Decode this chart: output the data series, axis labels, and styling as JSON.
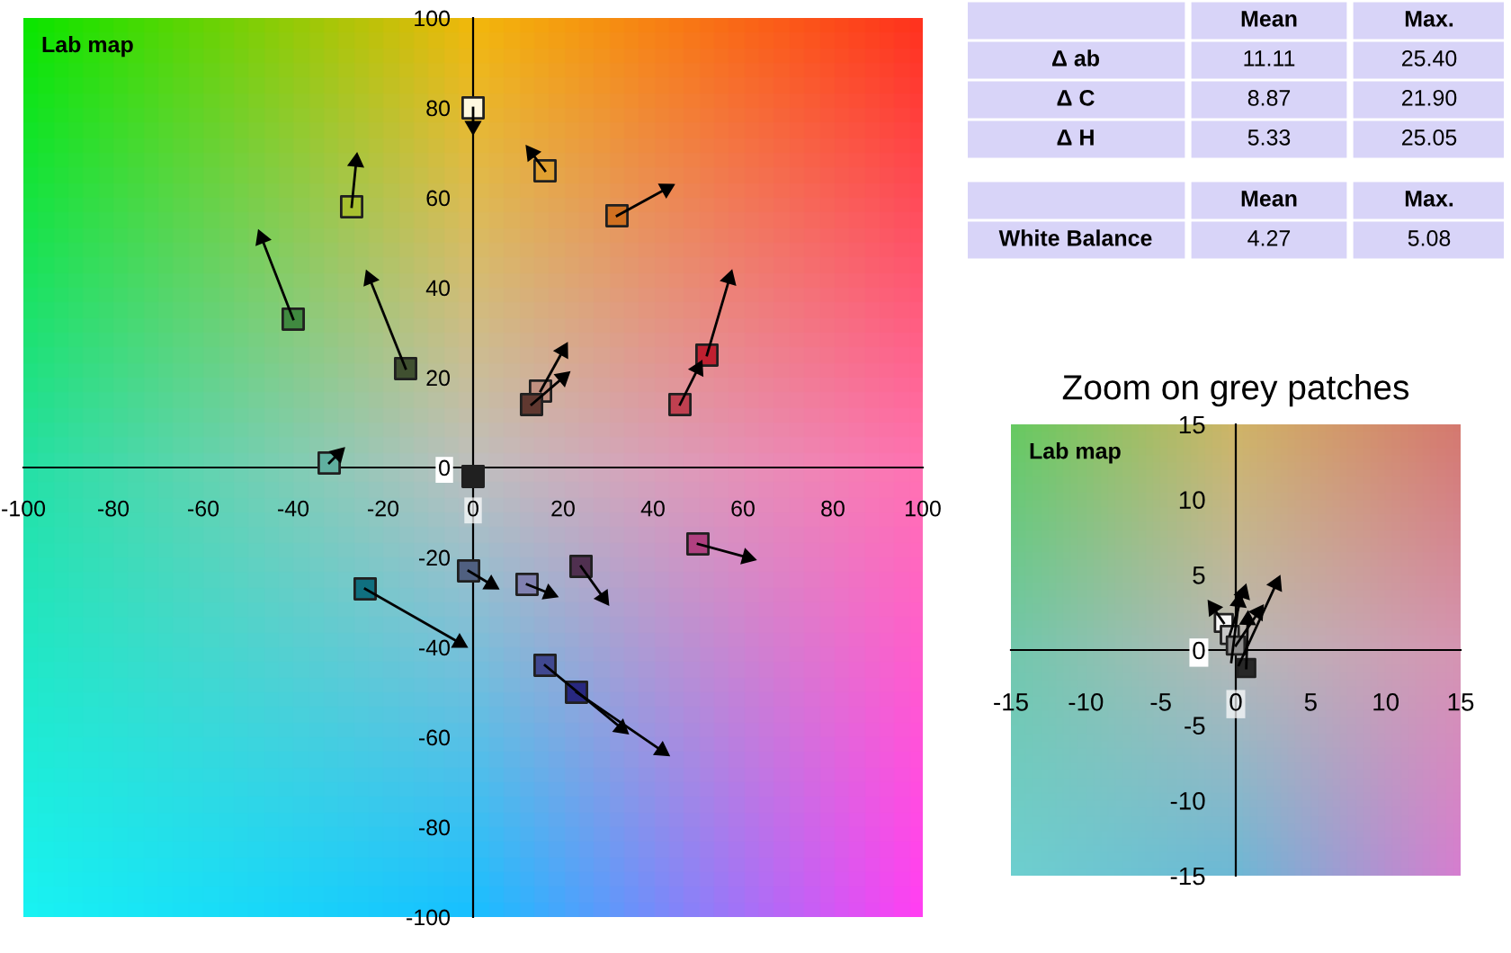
{
  "chart_data": [
    {
      "type": "scatter",
      "title": "Lab map",
      "xlim": [
        -100,
        100
      ],
      "ylim": [
        -100,
        100
      ],
      "xticks": [
        -100,
        -80,
        -60,
        -40,
        -20,
        0,
        20,
        40,
        60,
        80,
        100
      ],
      "yticks": [
        -100,
        -80,
        -60,
        -40,
        -20,
        0,
        20,
        40,
        60,
        80,
        100
      ],
      "grid": false,
      "marker": "square",
      "line_style": "solid",
      "series": [
        {
          "type": "scatter",
          "x": [
            0,
            16,
            -27,
            32,
            -40,
            -15,
            52,
            46,
            15,
            13,
            -32,
            -1,
            12,
            24,
            50,
            -24,
            16,
            23,
            0
          ],
          "values": [
            80,
            66,
            58,
            56,
            33,
            22,
            25,
            14,
            17,
            14,
            1,
            -23,
            -26,
            -22,
            -17,
            -27,
            -44,
            -50,
            -2
          ],
          "colors": [
            "#fff8e0",
            "#e0a030",
            "#a8c030",
            "#d07020",
            "#408a40",
            "#405030",
            "#c02030",
            "#c04050",
            "#c09080",
            "#603830",
            "#60b0a0",
            "#506080",
            "#8080b0",
            "#503050",
            "#b04080",
            "#107080",
            "#404890",
            "#282880",
            "#202020"
          ]
        },
        {
          "type": "line",
          "marker": "triangle",
          "color": "#000000",
          "x": [
            0,
            0
          ],
          "values": [
            80,
            76
          ]
        },
        {
          "type": "line",
          "marker": "triangle",
          "color": "#000000",
          "x": [
            16,
            13
          ],
          "values": [
            66,
            70
          ]
        },
        {
          "type": "line",
          "marker": "triangle",
          "color": "#000000",
          "x": [
            -27,
            -26
          ],
          "values": [
            58,
            68
          ]
        },
        {
          "type": "line",
          "marker": "triangle",
          "color": "#000000",
          "x": [
            32,
            43
          ],
          "values": [
            56,
            62
          ]
        },
        {
          "type": "line",
          "marker": "triangle",
          "color": "#000000",
          "x": [
            -40,
            -47
          ],
          "values": [
            33,
            51
          ]
        },
        {
          "type": "line",
          "marker": "triangle",
          "color": "#000000",
          "x": [
            -15,
            -23
          ],
          "values": [
            22,
            42
          ]
        },
        {
          "type": "line",
          "marker": "triangle",
          "color": "#000000",
          "x": [
            52,
            57
          ],
          "values": [
            25,
            42
          ]
        },
        {
          "type": "line",
          "marker": "triangle",
          "color": "#000000",
          "x": [
            46,
            50
          ],
          "values": [
            14,
            22
          ]
        },
        {
          "type": "line",
          "marker": "triangle",
          "color": "#000000",
          "x": [
            15,
            20
          ],
          "values": [
            17,
            26
          ]
        },
        {
          "type": "line",
          "marker": "triangle",
          "color": "#000000",
          "x": [
            13,
            20
          ],
          "values": [
            14,
            20
          ]
        },
        {
          "type": "line",
          "marker": "triangle",
          "color": "#000000",
          "x": [
            -32,
            -30
          ],
          "values": [
            1,
            3
          ]
        },
        {
          "type": "line",
          "marker": "triangle",
          "color": "#000000",
          "x": [
            -1,
            4
          ],
          "values": [
            -23,
            -26
          ]
        },
        {
          "type": "line",
          "marker": "triangle",
          "color": "#000000",
          "x": [
            12,
            17
          ],
          "values": [
            -26,
            -28
          ]
        },
        {
          "type": "line",
          "marker": "triangle",
          "color": "#000000",
          "x": [
            24,
            29
          ],
          "values": [
            -22,
            -29
          ]
        },
        {
          "type": "line",
          "marker": "triangle",
          "color": "#000000",
          "x": [
            50,
            61
          ],
          "values": [
            -17,
            -20
          ]
        },
        {
          "type": "line",
          "marker": "triangle",
          "color": "#000000",
          "x": [
            -24,
            -3
          ],
          "values": [
            -27,
            -39
          ]
        },
        {
          "type": "line",
          "marker": "triangle",
          "color": "#000000",
          "x": [
            16,
            33
          ],
          "values": [
            -44,
            -58
          ]
        },
        {
          "type": "line",
          "marker": "triangle",
          "color": "#000000",
          "x": [
            23,
            42
          ],
          "values": [
            -50,
            -63
          ]
        }
      ]
    },
    {
      "type": "other",
      "annotations": [
        "Mean",
        "Max.",
        "Δ ab",
        "11.11",
        "25.40",
        "Δ C",
        "8.87",
        "21.90",
        "Δ H",
        "5.33",
        "25.05",
        "Mean",
        "Max.",
        "White Balance",
        "4.27",
        "5.08"
      ]
    },
    {
      "type": "scatter",
      "title": "Zoom on grey patches",
      "subtitle": "Lab map",
      "xlim": [
        -15,
        15
      ],
      "ylim": [
        -15,
        15
      ],
      "xticks": [
        -15,
        -10,
        -5,
        0,
        5,
        10,
        15
      ],
      "yticks": [
        -15,
        -10,
        -5,
        0,
        5,
        10,
        15
      ],
      "grid": false,
      "marker": "square",
      "line_style": "solid",
      "series": [
        {
          "type": "scatter",
          "x": [
            -0.8,
            -0.4,
            0,
            0.7
          ],
          "values": [
            1.8,
            1.0,
            0.3,
            -1.2
          ],
          "colors": [
            "#f8f8f8",
            "#c8c8c8",
            "#909090",
            "#282828"
          ]
        },
        {
          "type": "line",
          "marker": "triangle",
          "color": "#000000",
          "x": [
            -0.8,
            -1.5
          ],
          "values": [
            1.8,
            2.8
          ]
        },
        {
          "type": "line",
          "marker": "triangle",
          "color": "#000000",
          "x": [
            -0.4,
            0.5
          ],
          "values": [
            1.0,
            3.8
          ]
        },
        {
          "type": "line",
          "marker": "triangle",
          "color": "#000000",
          "x": [
            0,
            1.5
          ],
          "values": [
            0.3,
            2.5
          ]
        },
        {
          "type": "line",
          "marker": "triangle",
          "color": "#000000",
          "x": [
            -0.3,
            0.2
          ],
          "values": [
            -0.8,
            3.2
          ]
        },
        {
          "type": "line",
          "marker": "triangle",
          "color": "#000000",
          "x": [
            0.2,
            2.7
          ],
          "values": [
            -1.0,
            4.4
          ]
        },
        {
          "type": "line",
          "marker": "triangle",
          "color": "#000000",
          "x": [
            0.7,
            0.8
          ],
          "values": [
            -1.2,
            2.0
          ]
        }
      ]
    }
  ]
}
